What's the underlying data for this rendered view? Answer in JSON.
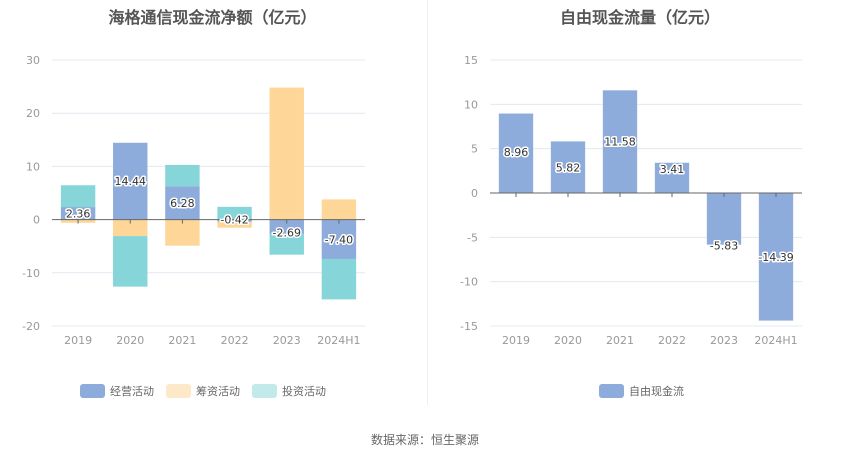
{
  "colors": {
    "operating": "#8eacdb",
    "financing": "#fed698",
    "investing": "#86d6d9",
    "financing_legend": "#fde9c8",
    "investing_legend": "#c2eaeb",
    "fcf": "#8eacdb",
    "grid": "#e3e8f0",
    "zero_line": "#666666"
  },
  "source": "数据来源：恒生聚源",
  "chart_data": [
    {
      "type": "bar",
      "stacked": true,
      "title": "海格通信现金流净额（亿元）",
      "categories": [
        "2019",
        "2020",
        "2021",
        "2022",
        "2023",
        "2024H1"
      ],
      "series": [
        {
          "name": "经营活动",
          "key": "operating",
          "values": [
            2.36,
            14.44,
            6.28,
            -0.42,
            -2.69,
            -7.4
          ],
          "labels": [
            "2.36",
            "14.44",
            "6.28",
            "-0.42",
            "-2.69",
            "-7.40"
          ]
        },
        {
          "name": "筹资活动",
          "key": "financing",
          "values": [
            -0.6,
            -3.1,
            -4.9,
            -1.1,
            24.8,
            3.8
          ]
        },
        {
          "name": "投资活动",
          "key": "investing",
          "values": [
            4.1,
            -9.5,
            4.0,
            2.4,
            -3.9,
            -7.6
          ]
        }
      ],
      "ylim": [
        -20,
        30
      ],
      "yticks": [
        "30",
        "20",
        "10",
        "0",
        "-10",
        "-20"
      ],
      "ytick_values": [
        30,
        20,
        10,
        0,
        -10,
        -20
      ],
      "grid": true,
      "legend": "bottom"
    },
    {
      "type": "bar",
      "title": "自由现金流量（亿元）",
      "categories": [
        "2019",
        "2020",
        "2021",
        "2022",
        "2023",
        "2024H1"
      ],
      "series": [
        {
          "name": "自由现金流",
          "key": "fcf",
          "values": [
            8.96,
            5.82,
            11.58,
            3.41,
            -5.83,
            -14.39
          ],
          "labels": [
            "8.96",
            "5.82",
            "11.58",
            "3.41",
            "-5.83",
            "-14.39"
          ]
        }
      ],
      "ylim": [
        -15,
        15
      ],
      "yticks": [
        "15",
        "10",
        "5",
        "0",
        "-5",
        "-10",
        "-15"
      ],
      "ytick_values": [
        15,
        10,
        5,
        0,
        -5,
        -10,
        -15
      ],
      "grid": true,
      "legend": "bottom"
    }
  ]
}
